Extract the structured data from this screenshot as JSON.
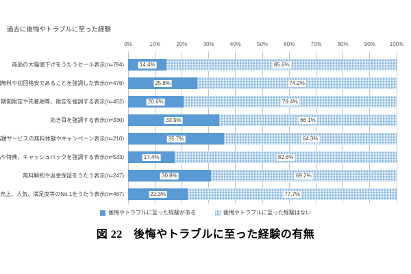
{
  "figure": {
    "title": "過去に後悔やトラブルに至った経験",
    "caption": "図 22　後悔やトラブルに至った経験の有無"
  },
  "colors": {
    "bar_solid": "#5B9BD5",
    "bar_hatch": "#8FBCE4",
    "bar_hatch_light": "#E9F1FA",
    "gridline": "#C6C6C6",
    "label_text": "#404040",
    "axis_text": "#595959"
  },
  "chart_data": {
    "type": "bar",
    "orientation": "horizontal",
    "stacked": true,
    "title": "過去に後悔やトラブルに至った経験",
    "caption": "図 22　後悔やトラブルに至った経験の有無",
    "categories": [
      "商品の大幅値下げをうたうセール表示(n=794)",
      "初回無料や初回格安であることを強調した表示(n=476)",
      "期間限定や先着順等、限定を強調する表示(n=452)",
      "効き目を強調する表示(n=330)",
      "高額サービスの無料体験やキャンペーン表示(n=210)",
      "景品や特典、キャッシュバックを強調する表示(n=533)",
      "無料解約や返金保証をうたう表示(n=247)",
      "売上、人気、満足度等のNo.1をうたう表示(n=467)"
    ],
    "series": [
      {
        "name": "後悔やトラブルに至った経験がある",
        "pattern": "solid",
        "color": "#5B9BD5",
        "values": [
          14.4,
          25.8,
          20.6,
          33.9,
          35.7,
          17.4,
          30.8,
          22.3
        ],
        "labels": [
          "14.4%",
          "25.8%",
          "20.6%",
          "33.9%",
          "35.7%",
          "17.4%",
          "30.8%",
          "22.3%"
        ]
      },
      {
        "name": "後悔やトラブルに至った経験はない",
        "pattern": "crosshatch",
        "color": "#9DC3E6",
        "values": [
          85.6,
          74.2,
          79.4,
          66.1,
          64.3,
          82.6,
          69.2,
          77.7
        ],
        "labels": [
          "85.6%",
          "74.2%",
          "79.4%",
          "66.1%",
          "64.3%",
          "82.6%",
          "69.2%",
          "77.7%"
        ]
      }
    ],
    "x_axis": {
      "min": 0,
      "max": 100,
      "step": 10,
      "tick_labels": [
        "0%",
        "10%",
        "20%",
        "30%",
        "40%",
        "50%",
        "60%",
        "70%",
        "80%",
        "90%",
        "100%"
      ]
    },
    "grid": true,
    "value_labels": true,
    "legend_position": "bottom"
  }
}
